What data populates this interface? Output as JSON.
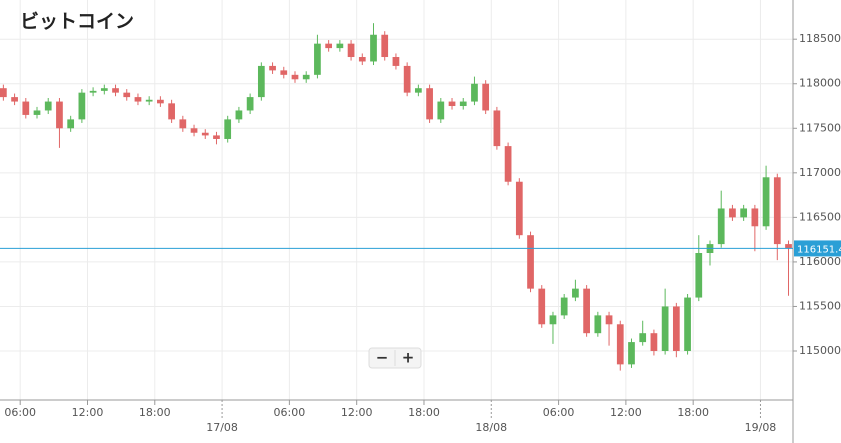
{
  "chart_data": {
    "type": "candlestick",
    "title": "ビットコイン",
    "xlim": [
      4.2,
      74.9
    ],
    "xticks": [
      {
        "value": 6,
        "label": "06:00"
      },
      {
        "value": 12,
        "label": "12:00"
      },
      {
        "value": 18,
        "label": "18:00"
      },
      {
        "value": 24,
        "label": "17/08"
      },
      {
        "value": 30,
        "label": "06:00"
      },
      {
        "value": 36,
        "label": "12:00"
      },
      {
        "value": 42,
        "label": "18:00"
      },
      {
        "value": 48,
        "label": "18/08"
      },
      {
        "value": 54,
        "label": "06:00"
      },
      {
        "value": 60,
        "label": "12:00"
      },
      {
        "value": 66,
        "label": "18:00"
      },
      {
        "value": 72,
        "label": "19/08"
      }
    ],
    "ylim": [
      114450,
      118940
    ],
    "yticks": [
      {
        "value": 115000,
        "label": "115000.0"
      },
      {
        "value": 115500,
        "label": "115500.0"
      },
      {
        "value": 116000,
        "label": "116000.0"
      },
      {
        "value": 116500,
        "label": "116500.0"
      },
      {
        "value": 117000,
        "label": "117000.0"
      },
      {
        "value": 117500,
        "label": "117500.0"
      },
      {
        "value": 118000,
        "label": "118000.0"
      },
      {
        "value": 118500,
        "label": "118500.0"
      }
    ],
    "grid": true,
    "up_color": "#5cb85c",
    "down_color": "#e06666",
    "current_price": 116151.4,
    "current_color": "#2a9fd6",
    "controls": [
      "−",
      "+"
    ],
    "x": [
      4.5,
      5.5,
      6.5,
      7.5,
      8.5,
      9.5,
      10.5,
      11.5,
      12.5,
      13.5,
      14.5,
      15.5,
      16.5,
      17.5,
      18.5,
      19.5,
      20.5,
      21.5,
      22.5,
      23.5,
      24.5,
      25.5,
      26.5,
      27.5,
      28.5,
      29.5,
      30.5,
      31.5,
      32.5,
      33.5,
      34.5,
      35.5,
      36.5,
      37.5,
      38.5,
      39.5,
      40.5,
      41.5,
      42.5,
      43.5,
      44.5,
      45.5,
      46.5,
      47.5,
      48.5,
      49.5,
      50.5,
      51.5,
      52.5,
      53.5,
      54.5,
      55.5,
      56.5,
      57.5,
      58.5,
      59.5,
      60.5,
      61.5,
      62.5,
      63.5,
      64.5,
      65.5,
      66.5,
      67.5,
      68.5,
      69.5,
      70.5,
      71.5,
      72.5,
      73.5,
      74.5
    ],
    "open": [
      117950,
      117850,
      117800,
      117650,
      117700,
      117800,
      117500,
      117600,
      117900,
      117920,
      117950,
      117900,
      117850,
      117800,
      117820,
      117780,
      117600,
      117500,
      117450,
      117420,
      117380,
      117600,
      117700,
      117850,
      118200,
      118150,
      118100,
      118050,
      118100,
      118450,
      118400,
      118450,
      118300,
      118250,
      118550,
      118300,
      118200,
      117900,
      117950,
      117600,
      117800,
      117750,
      117800,
      118000,
      117700,
      117300,
      116900,
      116300,
      115700,
      115300,
      115400,
      115600,
      115700,
      115200,
      115400,
      115300,
      114850,
      115100,
      115200,
      115000,
      115500,
      115000,
      115600,
      116100,
      116200,
      116600,
      116500,
      116600,
      116400,
      116950,
      116200
    ],
    "high": [
      117990,
      117890,
      117840,
      117740,
      117840,
      117840,
      117640,
      117940,
      117960,
      117990,
      117990,
      117940,
      117890,
      117860,
      117860,
      117820,
      117640,
      117540,
      117490,
      117460,
      117640,
      117740,
      117890,
      118240,
      118240,
      118190,
      118140,
      118140,
      118550,
      118490,
      118490,
      118490,
      118340,
      118680,
      118590,
      118340,
      118240,
      117990,
      117990,
      117840,
      117840,
      117840,
      118080,
      118040,
      117740,
      117340,
      116940,
      116340,
      115740,
      115440,
      115640,
      115800,
      115740,
      115440,
      115440,
      115340,
      115140,
      115340,
      115240,
      115700,
      115540,
      115640,
      116300,
      116240,
      116800,
      116640,
      116640,
      116640,
      117080,
      116990,
      116240
    ],
    "low": [
      117810,
      117760,
      117610,
      117610,
      117660,
      117280,
      117460,
      117560,
      117860,
      117880,
      117860,
      117810,
      117760,
      117760,
      117740,
      117560,
      117460,
      117410,
      117380,
      117320,
      117340,
      117560,
      117660,
      117810,
      118110,
      118060,
      118010,
      118010,
      118060,
      118360,
      118360,
      118260,
      118210,
      118210,
      118260,
      118160,
      117860,
      117860,
      117560,
      117560,
      117710,
      117710,
      117760,
      117660,
      117260,
      116860,
      116260,
      115660,
      115260,
      115080,
      115360,
      115560,
      115160,
      115160,
      115060,
      114780,
      114810,
      115060,
      114950,
      114960,
      114930,
      114960,
      115560,
      115960,
      116160,
      116460,
      116460,
      116120,
      116360,
      116020,
      115620
    ],
    "close": [
      117850,
      117800,
      117650,
      117700,
      117800,
      117500,
      117600,
      117900,
      117920,
      117950,
      117900,
      117850,
      117800,
      117820,
      117780,
      117600,
      117500,
      117450,
      117420,
      117380,
      117600,
      117700,
      117850,
      118200,
      118150,
      118100,
      118050,
      118100,
      118450,
      118400,
      118450,
      118300,
      118250,
      118550,
      118300,
      118200,
      117900,
      117950,
      117600,
      117800,
      117750,
      117800,
      118000,
      117700,
      117300,
      116900,
      116300,
      115700,
      115300,
      115400,
      115600,
      115700,
      115200,
      115400,
      115300,
      114850,
      115100,
      115200,
      115000,
      115500,
      115000,
      115600,
      116100,
      116200,
      116600,
      116500,
      116600,
      116400,
      116950,
      116200,
      116151.4
    ]
  }
}
